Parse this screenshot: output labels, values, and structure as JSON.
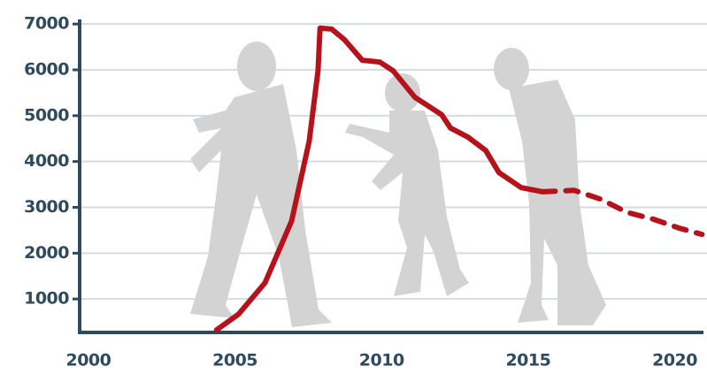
{
  "chart_data": {
    "type": "line",
    "x": [
      2004.37,
      2005.12,
      2006.02,
      2006.93,
      2007.53,
      2007.83,
      2007.9,
      2008.3,
      2008.73,
      2009.34,
      2009.94,
      2010.39,
      2011.14,
      2012.05,
      2012.35,
      2012.95,
      2013.55,
      2014.0,
      2014.76,
      2015.5,
      2016.57,
      2017.47,
      2018.37,
      2019.28,
      2020.18,
      2020.93
    ],
    "series": [
      {
        "color": "#b5121b",
        "style": "solid",
        "values": [
          324,
          670,
          1350,
          2700,
          4440,
          5980,
          6910,
          6890,
          6660,
          6210,
          6170,
          5980,
          5400,
          5020,
          4730,
          4530,
          4240,
          3760,
          3430,
          3340,
          null,
          null,
          null,
          null,
          null,
          null
        ]
      },
      {
        "color": "#b5121b",
        "style": "dashed",
        "values": [
          null,
          null,
          null,
          null,
          null,
          null,
          null,
          null,
          null,
          null,
          null,
          null,
          null,
          null,
          null,
          null,
          null,
          null,
          null,
          3340,
          3370,
          3180,
          2890,
          2740,
          2540,
          2410
        ]
      }
    ],
    "xlim": [
      1999.7,
      2021.1
    ],
    "xticks": [
      2000,
      2005,
      2010,
      2015,
      2020
    ],
    "ylim": [
      270,
      7100
    ],
    "yticks": [
      1000,
      2000,
      3000,
      4000,
      5000,
      6000,
      7000
    ],
    "grid": true
  }
}
